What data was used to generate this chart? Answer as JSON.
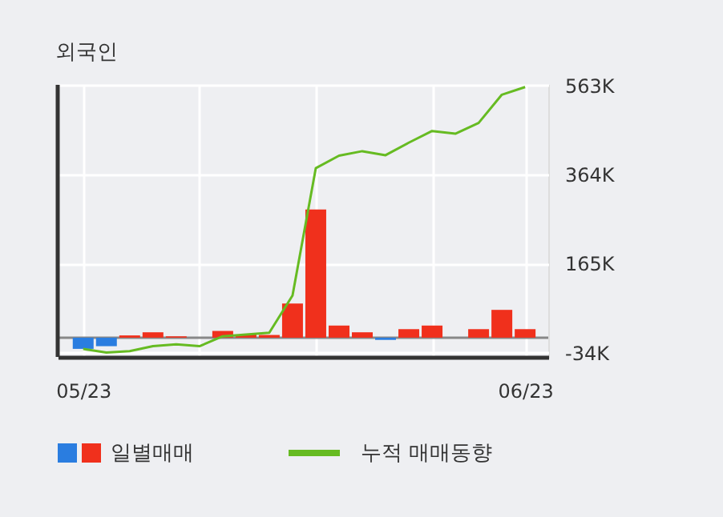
{
  "chart_data": {
    "type": "bar",
    "title": "외국인",
    "categories": [
      "05/23",
      null,
      null,
      null,
      null,
      null,
      null,
      null,
      null,
      null,
      null,
      null,
      null,
      null,
      null,
      null,
      null,
      null,
      null,
      "06/23"
    ],
    "series": [
      {
        "name": "일별매매",
        "color": "#f0301c",
        "colors": [
          "#2a7de0",
          "#2a7de0",
          "#f0301c",
          "#f0301c",
          "#f0301c",
          "#f0301c",
          "#f0301c",
          "#f0301c",
          "#f0301c",
          "#f0301c",
          "#f0301c",
          "#f0301c",
          "#f0301c",
          "#2a7de0",
          "#f0301c",
          "#f0301c",
          "#f0301c",
          "#f0301c",
          "#f0301c",
          "#f0301c"
        ],
        "values": [
          -25,
          -19,
          5,
          12,
          3,
          0,
          15,
          7,
          6,
          76,
          286,
          27,
          12,
          -5,
          19,
          27,
          0,
          19,
          62,
          19
        ]
      },
      {
        "name": "누적 매매동향",
        "type": "line",
        "color": "#66bb22",
        "values": [
          -25,
          -33,
          -30,
          -19,
          -15,
          -19,
          3,
          7,
          11,
          94,
          378,
          406,
          416,
          407,
          435,
          461,
          455,
          479,
          542,
          559
        ]
      }
    ],
    "ylim": [
      -43,
      564
    ],
    "yticks": [
      {
        "value": 563,
        "label": "563K"
      },
      {
        "value": 364,
        "label": "364K"
      },
      {
        "value": 165,
        "label": "165K"
      },
      {
        "value": -34,
        "label": "-34K"
      }
    ],
    "ref_lines": [
      {
        "axis": "y",
        "value": 0,
        "color": "#888888"
      }
    ],
    "grid": true,
    "legend": "bottom"
  }
}
